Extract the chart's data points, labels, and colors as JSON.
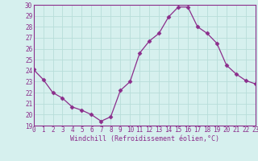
{
  "x": [
    0,
    1,
    2,
    3,
    4,
    5,
    6,
    7,
    8,
    9,
    10,
    11,
    12,
    13,
    14,
    15,
    16,
    17,
    18,
    19,
    20,
    21,
    22,
    23
  ],
  "y": [
    24.1,
    23.2,
    22.0,
    21.5,
    20.7,
    20.4,
    20.0,
    19.4,
    19.8,
    22.2,
    23.0,
    25.6,
    26.7,
    27.4,
    28.9,
    29.8,
    29.8,
    28.0,
    27.4,
    26.5,
    24.5,
    23.7,
    23.1,
    22.8
  ],
  "line_color": "#8B2D8B",
  "marker": "D",
  "marker_size": 2.5,
  "bg_color": "#d6f0ee",
  "grid_color": "#b8ddd9",
  "xlabel": "Windchill (Refroidissement éolien,°C)",
  "xlabel_color": "#8B2D8B",
  "tick_color": "#8B2D8B",
  "ylim": [
    19,
    30
  ],
  "yticks": [
    19,
    20,
    21,
    22,
    23,
    24,
    25,
    26,
    27,
    28,
    29,
    30
  ],
  "xticks": [
    0,
    1,
    2,
    3,
    4,
    5,
    6,
    7,
    8,
    9,
    10,
    11,
    12,
    13,
    14,
    15,
    16,
    17,
    18,
    19,
    20,
    21,
    22,
    23
  ],
  "xtick_labels": [
    "0",
    "1",
    "2",
    "3",
    "4",
    "5",
    "6",
    "7",
    "8",
    "9",
    "10",
    "11",
    "12",
    "13",
    "14",
    "15",
    "16",
    "17",
    "18",
    "19",
    "20",
    "21",
    "22",
    "23"
  ],
  "ytick_labels": [
    "19",
    "20",
    "21",
    "22",
    "23",
    "24",
    "25",
    "26",
    "27",
    "28",
    "29",
    "30"
  ],
  "border_color": "#8B2D8B",
  "xlabel_fontsize": 6.0,
  "tick_fontsize": 5.5
}
